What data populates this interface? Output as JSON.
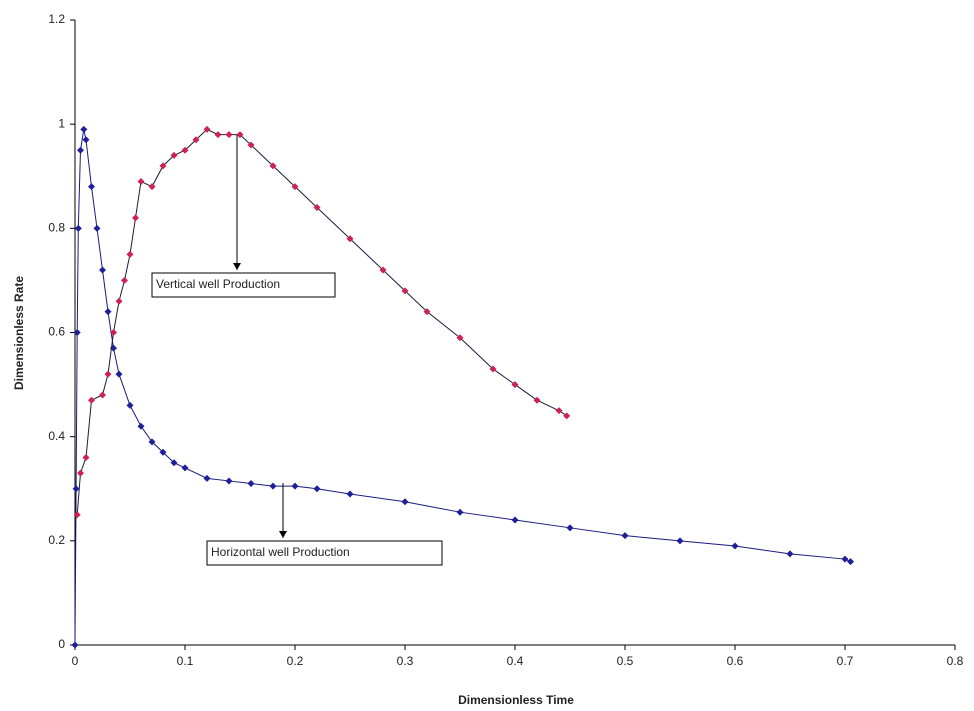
{
  "chart_data": {
    "type": "line",
    "x_label": "Dimensionless Time",
    "y_label": "Dimensionless Rate",
    "xlim": [
      0,
      0.8
    ],
    "xticks": [
      0,
      0.1,
      0.2,
      0.3,
      0.4,
      0.5,
      0.6,
      0.7,
      0.8
    ],
    "ylim": [
      0,
      1.2
    ],
    "yticks": [
      0,
      0.2,
      0.4,
      0.6,
      0.8,
      1,
      1.2
    ],
    "grid": false,
    "annotations": [
      "Vertical well Production",
      "Horizontal well Production"
    ],
    "series": [
      {
        "color": "#1a1a80",
        "marker_color": "#1f1f99",
        "x": [
          0,
          0.001,
          0.002,
          0.003,
          0.005,
          0.008,
          0.01,
          0.015,
          0.02,
          0.025,
          0.03,
          0.035,
          0.04,
          0.05,
          0.06,
          0.07,
          0.08,
          0.09,
          0.1,
          0.12,
          0.14,
          0.16,
          0.18,
          0.2,
          0.22,
          0.25,
          0.3,
          0.35,
          0.4,
          0.45,
          0.5,
          0.55,
          0.6,
          0.65,
          0.7,
          0.705
        ],
        "values": [
          0,
          0.3,
          0.6,
          0.8,
          0.95,
          0.99,
          0.97,
          0.88,
          0.8,
          0.72,
          0.64,
          0.57,
          0.52,
          0.46,
          0.42,
          0.39,
          0.37,
          0.35,
          0.34,
          0.32,
          0.315,
          0.31,
          0.305,
          0.305,
          0.3,
          0.29,
          0.275,
          0.255,
          0.24,
          0.225,
          0.21,
          0.2,
          0.19,
          0.175,
          0.165,
          0.16
        ]
      },
      {
        "color": "#1a1a40",
        "marker_color": "#cc2255",
        "x": [
          0.002,
          0.005,
          0.01,
          0.015,
          0.025,
          0.03,
          0.035,
          0.04,
          0.045,
          0.05,
          0.055,
          0.06,
          0.07,
          0.08,
          0.09,
          0.1,
          0.11,
          0.12,
          0.13,
          0.14,
          0.15,
          0.16,
          0.18,
          0.2,
          0.22,
          0.25,
          0.28,
          0.3,
          0.32,
          0.35,
          0.38,
          0.4,
          0.42,
          0.44,
          0.447
        ],
        "values": [
          0.25,
          0.33,
          0.36,
          0.47,
          0.48,
          0.52,
          0.6,
          0.66,
          0.7,
          0.75,
          0.82,
          0.89,
          0.88,
          0.92,
          0.94,
          0.95,
          0.97,
          0.99,
          0.98,
          0.98,
          0.98,
          0.96,
          0.92,
          0.88,
          0.84,
          0.78,
          0.72,
          0.68,
          0.64,
          0.59,
          0.53,
          0.5,
          0.47,
          0.45,
          0.44
        ]
      }
    ]
  }
}
